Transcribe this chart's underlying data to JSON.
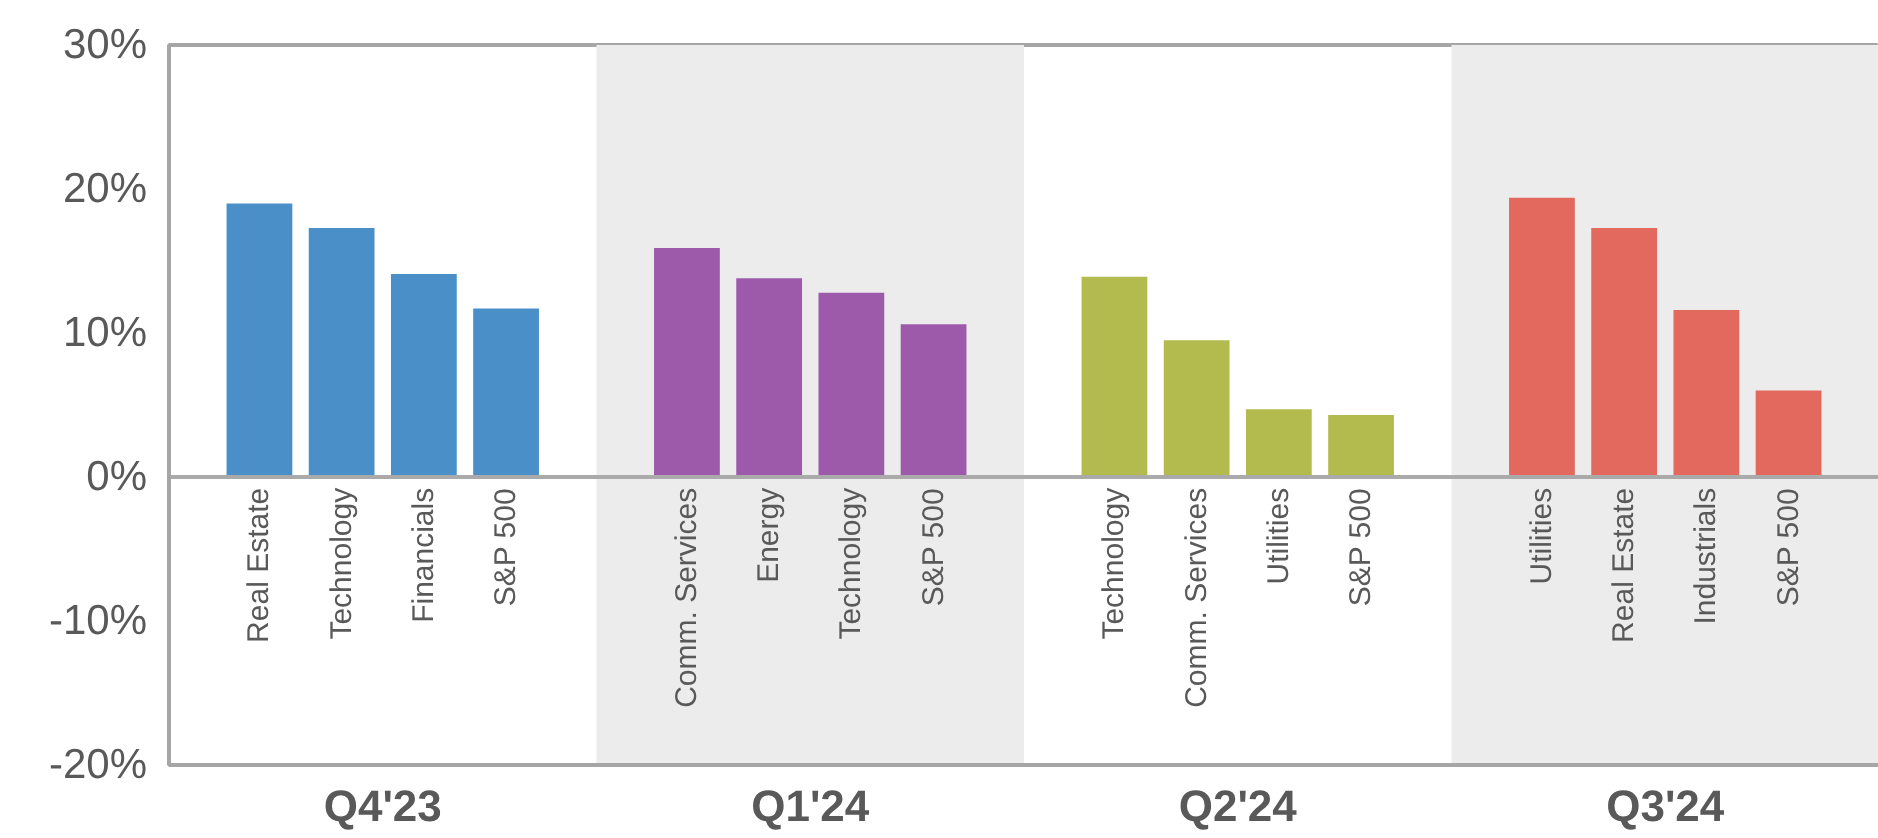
{
  "chart_data": {
    "type": "bar",
    "categories": [
      "Real Estate",
      "Technology",
      "Financials",
      "S&P 500",
      "Comm. Services",
      "Energy",
      "Technology",
      "S&P 500",
      "Technology",
      "Comm. Services",
      "Utilities",
      "S&P 500",
      "Utilities",
      "Real Estate",
      "Industrials",
      "S&P 500"
    ],
    "series": [
      {
        "color": "#4a8fc7",
        "values": [
          19.0,
          17.3,
          14.1,
          11.7,
          null,
          null,
          null,
          null,
          null,
          null,
          null,
          null,
          null,
          null,
          null,
          null
        ]
      },
      {
        "color": "#9d5aab",
        "values": [
          null,
          null,
          null,
          null,
          15.9,
          13.8,
          12.8,
          10.6,
          null,
          null,
          null,
          null,
          null,
          null,
          null,
          null
        ]
      },
      {
        "color": "#b3bb4f",
        "values": [
          null,
          null,
          null,
          null,
          null,
          null,
          null,
          null,
          13.9,
          9.5,
          4.7,
          4.3,
          null,
          null,
          null,
          null
        ]
      },
      {
        "color": "#e3695e",
        "values": [
          null,
          null,
          null,
          null,
          null,
          null,
          null,
          null,
          null,
          null,
          null,
          null,
          19.4,
          17.3,
          11.6,
          6.0
        ]
      }
    ],
    "annotations": [
      "Q4'23",
      "Q1'24",
      "Q2'24",
      "Q3'24"
    ],
    "ylim": [
      -20,
      30
    ],
    "yticks": [
      {
        "value": -20,
        "label": "-20%"
      },
      {
        "value": -10,
        "label": "-10%"
      },
      {
        "value": 0,
        "label": "0%"
      },
      {
        "value": 10,
        "label": "10%"
      },
      {
        "value": 20,
        "label": "20%"
      },
      {
        "value": 30,
        "label": "30%"
      }
    ],
    "grid": false
  }
}
